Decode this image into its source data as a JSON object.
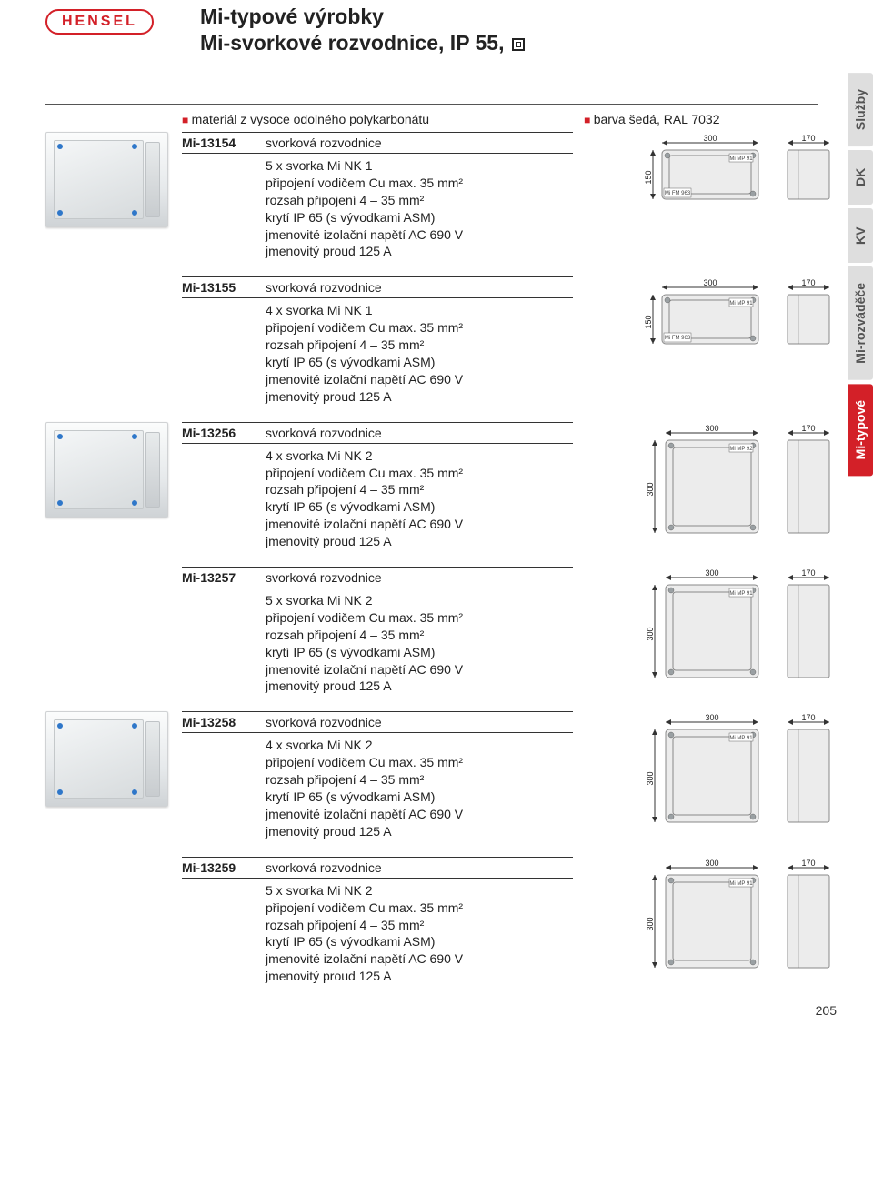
{
  "brand": "HENSEL",
  "page_number": "205",
  "header": {
    "title_line1": "Mi-typové výrobky",
    "title_line2": "Mi-svorkové rozvodnice, IP 55, "
  },
  "bullets": {
    "b1": "materiál z vysoce odolného polykarbonátu",
    "b2": "barva šedá, RAL 7032"
  },
  "side_tabs": [
    {
      "label": "Služby",
      "style": "g"
    },
    {
      "label": "DK",
      "style": "g"
    },
    {
      "label": "KV",
      "style": "g"
    },
    {
      "label": "Mi-rozváděče",
      "style": "g"
    },
    {
      "label": "Mi-typové",
      "style": "r"
    }
  ],
  "colors": {
    "accent": "#d32028",
    "tab_grey_bg": "#dedede",
    "tab_grey_fg": "#545454",
    "diagram_fill": "#ececec",
    "diagram_stroke": "#888888"
  },
  "products": [
    {
      "code": "Mi-13154",
      "name": "svorková rozvodnice",
      "lines": [
        "5 x svorka Mi NK 1",
        "připojení vodičem Cu max. 35 mm²",
        "rozsah připojení 4 – 35 mm²",
        "krytí IP 65 (s vývodkami ASM)",
        "jmenovité izolační napětí AC 690 V",
        "jmenovitý proud 125 A"
      ],
      "diagram": {
        "w": "300",
        "h": "150",
        "d": "170",
        "chip1": "Mi MP 91",
        "chip2": "Mi FM 963",
        "variant": "wide"
      },
      "has_thumb": true
    },
    {
      "code": "Mi-13155",
      "name": "svorková rozvodnice",
      "lines": [
        "4 x svorka Mi NK 1",
        "připojení vodičem Cu max. 35 mm²",
        "rozsah připojení 4 – 35 mm²",
        "krytí IP 65 (s vývodkami ASM)",
        "jmenovité izolační napětí AC 690 V",
        "jmenovitý proud 125 A"
      ],
      "diagram": {
        "w": "300",
        "h": "150",
        "d": "170",
        "chip1": "Mi MP 91",
        "chip2": "Mi FM 963",
        "variant": "wide"
      },
      "has_thumb": false
    },
    {
      "code": "Mi-13256",
      "name": "svorková rozvodnice",
      "lines": [
        "4 x svorka Mi NK 2",
        "připojení vodičem Cu max. 35 mm²",
        "rozsah připojení 4 – 35 mm²",
        "krytí IP 65 (s vývodkami ASM)",
        "jmenovité izolační napětí AC 690 V",
        "jmenovitý proud 125 A"
      ],
      "diagram": {
        "w": "300",
        "h": "300",
        "d": "170",
        "chip1": "Mi MP 92",
        "chip2": "",
        "variant": "square"
      },
      "has_thumb": true
    },
    {
      "code": "Mi-13257",
      "name": "svorková rozvodnice",
      "lines": [
        "5 x svorka Mi NK 2",
        "připojení vodičem Cu max. 35 mm²",
        "rozsah připojení 4 – 35 mm²",
        "krytí IP 65 (s vývodkami ASM)",
        "jmenovité izolační napětí AC 690 V",
        "jmenovitý proud 125 A"
      ],
      "diagram": {
        "w": "300",
        "h": "300",
        "d": "170",
        "chip1": "Mi MP 91",
        "chip2": "",
        "variant": "square"
      },
      "has_thumb": false
    },
    {
      "code": "Mi-13258",
      "name": "svorková rozvodnice",
      "lines": [
        "4 x svorka Mi NK 2",
        "připojení vodičem Cu max. 35 mm²",
        "rozsah připojení 4 – 35 mm²",
        "krytí IP 65 (s vývodkami ASM)",
        "jmenovité izolační napětí AC 690 V",
        "jmenovitý proud 125 A"
      ],
      "diagram": {
        "w": "300",
        "h": "300",
        "d": "170",
        "chip1": "Mi MP 91",
        "chip2": "",
        "variant": "square"
      },
      "has_thumb": true
    },
    {
      "code": "Mi-13259",
      "name": "svorková rozvodnice",
      "lines": [
        "5 x svorka Mi NK 2",
        "připojení vodičem Cu max. 35 mm²",
        "rozsah připojení 4 – 35 mm²",
        "krytí IP 65 (s vývodkami ASM)",
        "jmenovité izolační napětí AC 690 V",
        "jmenovitý proud 125 A"
      ],
      "diagram": {
        "w": "300",
        "h": "300",
        "d": "170",
        "chip1": "Mi MP 91",
        "chip2": "",
        "variant": "square"
      },
      "has_thumb": false
    }
  ]
}
